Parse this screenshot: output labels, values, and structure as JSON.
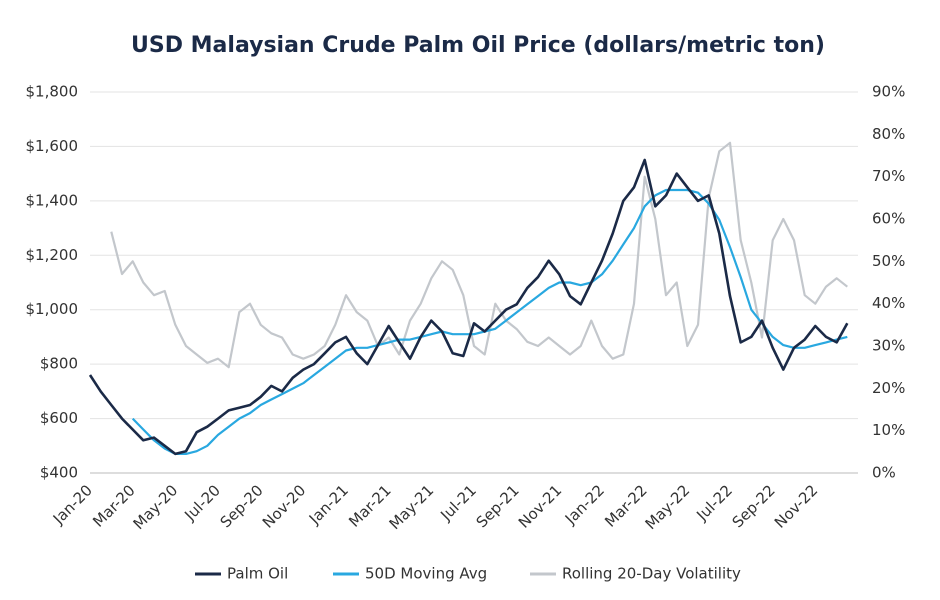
{
  "chart_data": {
    "type": "line",
    "title": "USD Malaysian Crude Palm Oil Price (dollars/metric ton)",
    "categories": [
      "Jan-20",
      null,
      null,
      null,
      "Mar-20",
      null,
      null,
      null,
      "May-20",
      null,
      null,
      null,
      "Jul-20",
      null,
      null,
      null,
      "Sep-20",
      null,
      null,
      null,
      "Nov-20",
      null,
      null,
      null,
      "Jan-21",
      null,
      null,
      null,
      "Mar-21",
      null,
      null,
      null,
      "May-21",
      null,
      null,
      null,
      "Jul-21",
      null,
      null,
      null,
      "Sep-21",
      null,
      null,
      null,
      "Nov-21",
      null,
      null,
      null,
      "Jan-22",
      null,
      null,
      null,
      "Mar-22",
      null,
      null,
      null,
      "May-22",
      null,
      null,
      null,
      "Jul-22",
      null,
      null,
      null,
      "Sep-22",
      null,
      null,
      null,
      "Nov-22",
      null,
      null,
      null
    ],
    "series": [
      {
        "name": "Palm Oil",
        "color": "#1b2a47",
        "values": [
          760,
          700,
          650,
          600,
          560,
          520,
          530,
          500,
          470,
          480,
          550,
          570,
          600,
          630,
          640,
          650,
          680,
          720,
          700,
          750,
          780,
          800,
          840,
          880,
          900,
          840,
          800,
          870,
          940,
          880,
          820,
          900,
          960,
          920,
          840,
          830,
          950,
          920,
          960,
          1000,
          1020,
          1080,
          1120,
          1180,
          1130,
          1050,
          1020,
          1100,
          1180,
          1280,
          1400,
          1450,
          1550,
          1380,
          1420,
          1500,
          1450,
          1400,
          1420,
          1280,
          1050,
          880,
          900,
          960,
          860,
          780,
          860,
          890,
          940,
          900,
          880,
          950
        ]
      },
      {
        "name": "50D Moving Avg",
        "color": "#29a8e0",
        "values": [
          null,
          null,
          null,
          null,
          600,
          560,
          520,
          490,
          470,
          470,
          480,
          500,
          540,
          570,
          600,
          620,
          650,
          670,
          690,
          710,
          730,
          760,
          790,
          820,
          850,
          860,
          860,
          870,
          880,
          890,
          890,
          900,
          910,
          920,
          910,
          910,
          910,
          920,
          930,
          960,
          990,
          1020,
          1050,
          1080,
          1100,
          1100,
          1090,
          1100,
          1130,
          1180,
          1240,
          1300,
          1380,
          1420,
          1440,
          1440,
          1440,
          1430,
          1390,
          1330,
          1230,
          1120,
          1000,
          950,
          900,
          870,
          860,
          860,
          870,
          880,
          890,
          900
        ]
      },
      {
        "name": "Rolling 20-Day Volatility",
        "color": "#c3c7cc",
        "axis": "y2",
        "values": [
          null,
          null,
          57,
          47,
          50,
          45,
          42,
          43,
          35,
          30,
          28,
          26,
          27,
          25,
          38,
          40,
          35,
          33,
          32,
          28,
          27,
          28,
          30,
          35,
          42,
          38,
          36,
          30,
          32,
          28,
          36,
          40,
          46,
          50,
          48,
          42,
          30,
          28,
          40,
          36,
          34,
          31,
          30,
          32,
          30,
          28,
          30,
          36,
          30,
          27,
          28,
          40,
          70,
          60,
          42,
          45,
          30,
          35,
          65,
          76,
          78,
          55,
          45,
          32,
          55,
          60,
          55,
          42,
          40,
          44,
          46,
          44
        ]
      }
    ],
    "ylim": [
      400,
      1800
    ],
    "yticks": [
      {
        "value": 400,
        "label": "$400"
      },
      {
        "value": 600,
        "label": "$600"
      },
      {
        "value": 800,
        "label": "$800"
      },
      {
        "value": 1000,
        "label": "$1,000"
      },
      {
        "value": 1200,
        "label": "$1,200"
      },
      {
        "value": 1400,
        "label": "$1,400"
      },
      {
        "value": 1600,
        "label": "$1,600"
      },
      {
        "value": 1800,
        "label": "$1,800"
      }
    ],
    "y2lim": [
      0,
      90
    ],
    "y2ticks": [
      {
        "value": 0,
        "label": "0%"
      },
      {
        "value": 10,
        "label": "10%"
      },
      {
        "value": 20,
        "label": "20%"
      },
      {
        "value": 30,
        "label": "30%"
      },
      {
        "value": 40,
        "label": "40%"
      },
      {
        "value": 50,
        "label": "50%"
      },
      {
        "value": 60,
        "label": "60%"
      },
      {
        "value": 70,
        "label": "70%"
      },
      {
        "value": 80,
        "label": "80%"
      },
      {
        "value": 90,
        "label": "90%"
      }
    ],
    "grid": true
  }
}
